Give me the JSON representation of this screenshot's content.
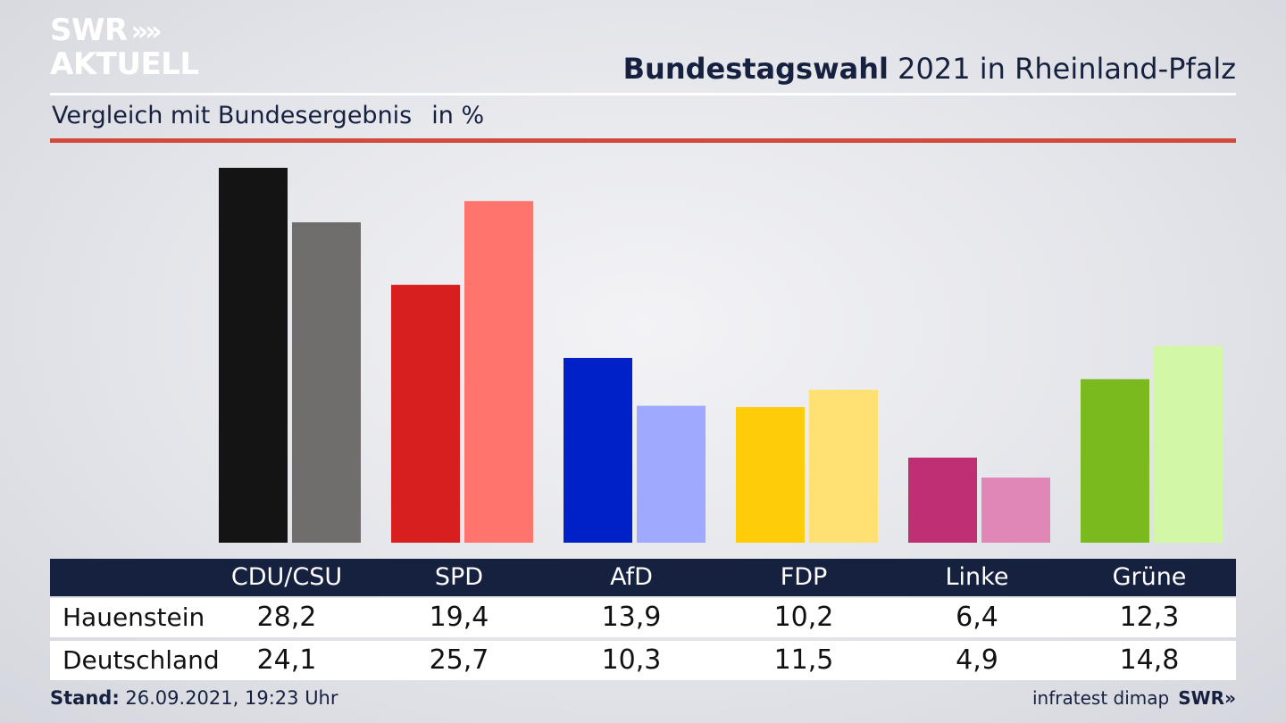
{
  "logo": {
    "line1": "SWR",
    "arrows": "»",
    "line2": "AKTUELL"
  },
  "title": {
    "bold": "Bundestagswahl",
    "rest": "2021 in Rheinland-Pfalz"
  },
  "subtitle": {
    "text": "Vergleich mit Bundesergebnis",
    "unit": "in %"
  },
  "colors": {
    "title_text": "#16213f",
    "red_rule": "#d14a3c",
    "table_header_bg": "#16213f"
  },
  "table": {
    "headers": [
      "CDU/CSU",
      "SPD",
      "AfD",
      "FDP",
      "Linke",
      "Grüne"
    ],
    "rows": [
      {
        "label": "Hauenstein",
        "values": [
          "28,2",
          "19,4",
          "13,9",
          "10,2",
          "6,4",
          "12,3"
        ]
      },
      {
        "label": "Deutschland",
        "values": [
          "24,1",
          "25,7",
          "10,3",
          "11,5",
          "4,9",
          "14,8"
        ]
      }
    ]
  },
  "footer": {
    "stand_label": "Stand:",
    "stand_value": "26.09.2021, 19:23 Uhr",
    "source": "infratest dimap",
    "brand": "SWR»"
  },
  "chart_data": {
    "type": "bar",
    "categories": [
      "CDU/CSU",
      "SPD",
      "AfD",
      "FDP",
      "Linke",
      "Grüne"
    ],
    "series": [
      {
        "name": "Hauenstein",
        "values": [
          28.2,
          19.4,
          13.9,
          10.2,
          6.4,
          12.3
        ],
        "colors": [
          "#141414",
          "#d71f1f",
          "#0021c7",
          "#ffcc0a",
          "#be2f74",
          "#7aba1f"
        ]
      },
      {
        "name": "Deutschland",
        "values": [
          24.1,
          25.7,
          10.3,
          11.5,
          4.9,
          14.8
        ],
        "colors": [
          "#6f6e6c",
          "#ff756e",
          "#9faaff",
          "#ffe072",
          "#df88b8",
          "#d2f7a6"
        ]
      }
    ],
    "ylim": [
      0,
      28.2
    ],
    "grid": false,
    "legend": "none"
  }
}
